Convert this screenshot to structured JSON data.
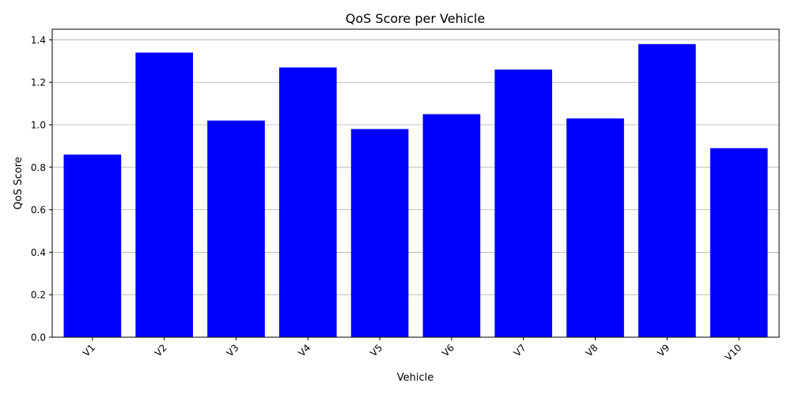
{
  "chart_data": {
    "type": "bar",
    "title": "QoS Score per Vehicle",
    "xlabel": "Vehicle",
    "ylabel": "QoS Score",
    "categories": [
      "V1",
      "V2",
      "V3",
      "V4",
      "V5",
      "V6",
      "V7",
      "V8",
      "V9",
      "V10"
    ],
    "values": [
      0.86,
      1.34,
      1.02,
      1.27,
      0.98,
      1.05,
      1.26,
      1.03,
      1.38,
      0.89
    ],
    "ylim": [
      0,
      1.45
    ],
    "yticks": [
      "0.0",
      "0.2",
      "0.4",
      "0.6",
      "0.8",
      "1.0",
      "1.2",
      "1.4"
    ],
    "grid": "horizontal",
    "bar_color": "#0000ff",
    "grid_color": "#b0b0b0",
    "axis_color": "#000000"
  }
}
